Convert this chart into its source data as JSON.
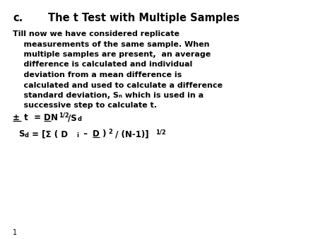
{
  "background_color": "#ffffff",
  "font_color": "#000000",
  "title_c": "c.",
  "title_main": "The t Test with Multiple Samples",
  "body_lines": [
    "Till now we have considered replicate",
    "    measurements of the same sample. When",
    "    multiple samples are present,  an average",
    "    difference is calculated and individual",
    "    deviation from a mean difference is",
    "    calculated and used to calculate a difference",
    "    standard deviation, Sₙ which is used in a",
    "    successive step to calculate t."
  ],
  "page_number": "1",
  "title_fontsize": 10.5,
  "body_fontsize": 8.0,
  "formula_fontsize": 8.5,
  "formula_sub_fontsize": 6.0
}
